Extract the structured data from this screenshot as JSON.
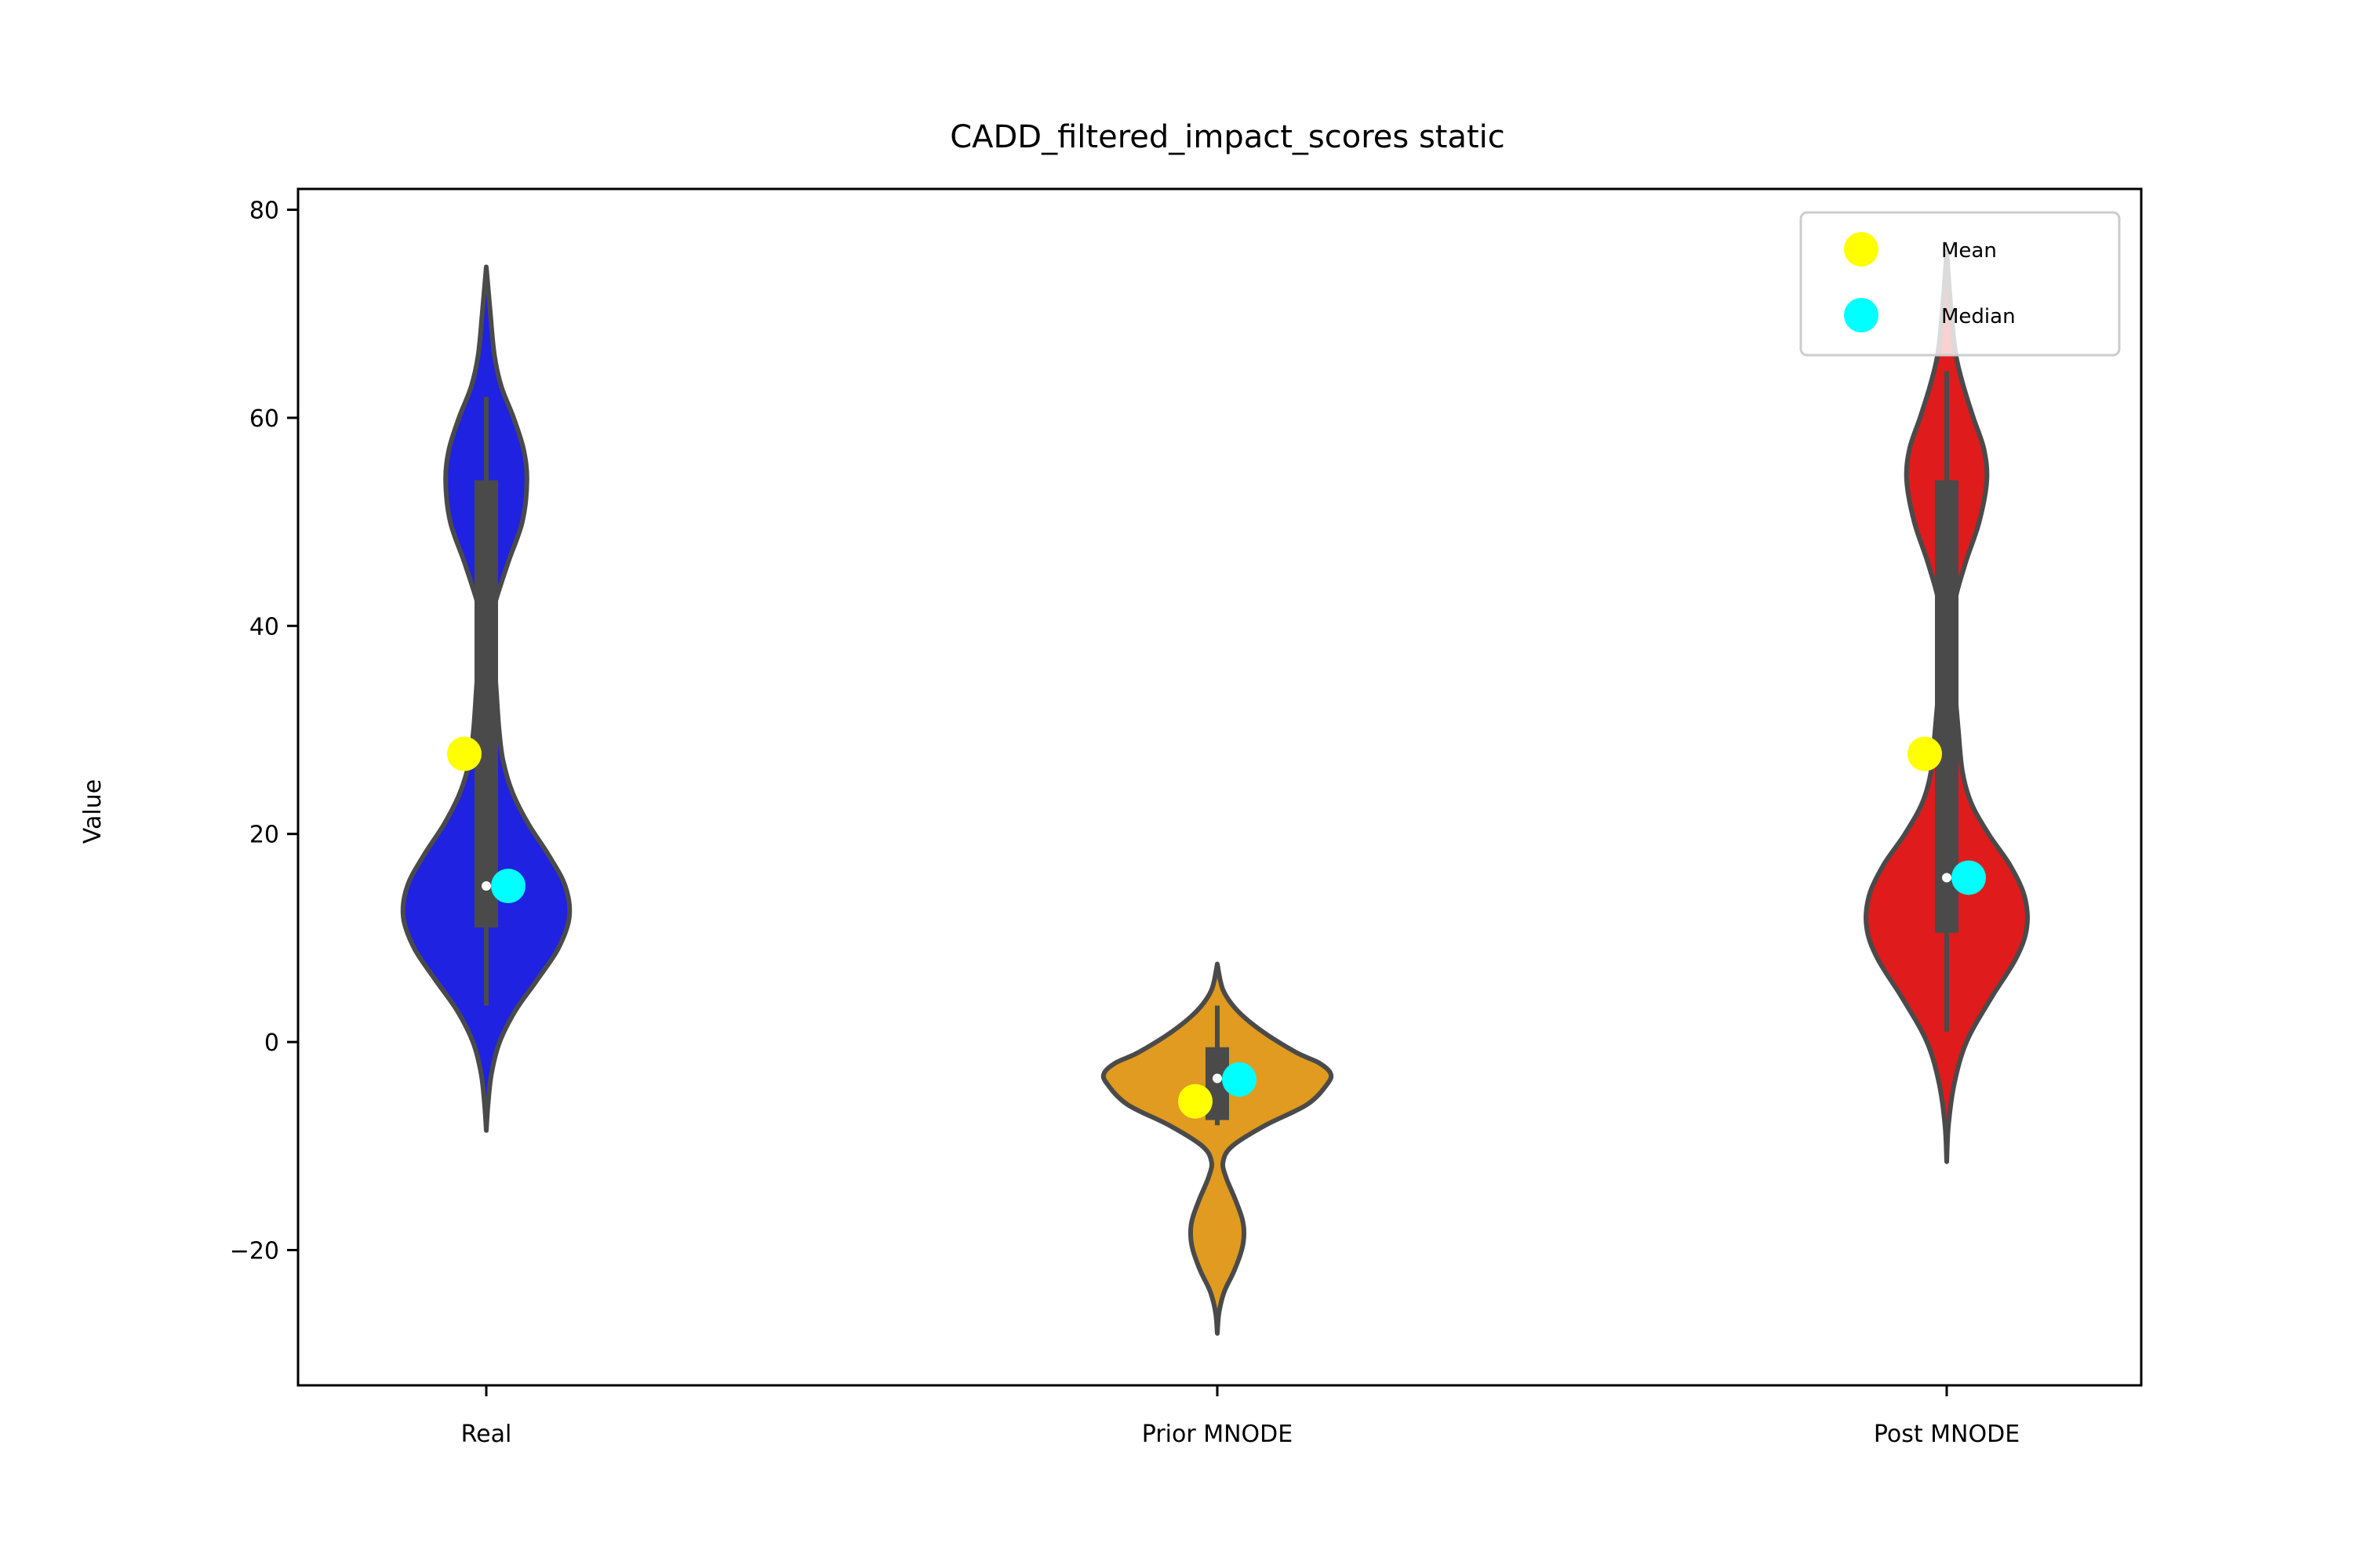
{
  "chart_data": {
    "type": "violin",
    "title": "CADD_filtered_impact_scores static",
    "xlabel": "",
    "ylabel": "Value",
    "ylim": [
      -33,
      82
    ],
    "yticks": [
      -20,
      0,
      20,
      40,
      60,
      80
    ],
    "ytick_labels": [
      "−20",
      "0",
      "20",
      "40",
      "60",
      "80"
    ],
    "categories": [
      "Real",
      "Prior MNODE",
      "Post MNODE"
    ],
    "grid": false,
    "legend": {
      "placement": "top-right",
      "entries": [
        {
          "label": "Mean",
          "color": "#ffff00"
        },
        {
          "label": "Median",
          "color": "#00ffff"
        }
      ]
    },
    "violins": [
      {
        "category": "Real",
        "color": "#1f22e0",
        "extent": [
          -8.5,
          74.5
        ],
        "density": [
          [
            -8.5,
            0.0
          ],
          [
            -6.0,
            0.3
          ],
          [
            -3.0,
            0.9
          ],
          [
            0.0,
            2.3
          ],
          [
            3.0,
            5.0
          ],
          [
            6.0,
            8.8
          ],
          [
            9.0,
            12.4
          ],
          [
            12.0,
            14.3
          ],
          [
            15.0,
            13.6
          ],
          [
            18.0,
            10.7
          ],
          [
            21.0,
            7.2
          ],
          [
            24.0,
            4.5
          ],
          [
            27.0,
            2.9
          ],
          [
            30.0,
            2.2
          ],
          [
            34.0,
            1.7
          ],
          [
            38.0,
            1.2
          ],
          [
            40.0,
            0.75
          ],
          [
            42.0,
            1.4
          ],
          [
            46.0,
            3.7
          ],
          [
            50.0,
            6.2
          ],
          [
            54.0,
            7.0
          ],
          [
            57.0,
            6.4
          ],
          [
            60.0,
            4.7
          ],
          [
            63.0,
            2.6
          ],
          [
            66.0,
            1.4
          ],
          [
            70.0,
            0.7
          ],
          [
            74.5,
            0.0
          ]
        ],
        "box": {
          "whisker_low": 3.5,
          "q1": 11.0,
          "median": 15.0,
          "q3": 54.0,
          "whisker_high": 62.0
        },
        "mean_point": 27.7,
        "median_point": 15.0
      },
      {
        "category": "Prior MNODE",
        "color": "#e09b20",
        "extent": [
          -28,
          7.5
        ],
        "density": [
          [
            -28.0,
            0.0
          ],
          [
            -26.0,
            0.3
          ],
          [
            -24.0,
            1.2
          ],
          [
            -22.0,
            2.9
          ],
          [
            -20.0,
            4.2
          ],
          [
            -18.5,
            4.6
          ],
          [
            -17.0,
            4.3
          ],
          [
            -15.0,
            3.0
          ],
          [
            -13.0,
            1.5
          ],
          [
            -11.5,
            1.0
          ],
          [
            -10.0,
            2.6
          ],
          [
            -8.0,
            8.3
          ],
          [
            -6.0,
            15.5
          ],
          [
            -4.0,
            19.0
          ],
          [
            -3.0,
            19.5
          ],
          [
            -2.0,
            17.5
          ],
          [
            -1.0,
            13.6
          ],
          [
            1.0,
            7.8
          ],
          [
            3.0,
            3.5
          ],
          [
            5.0,
            1.0
          ],
          [
            7.5,
            0.0
          ]
        ],
        "box": {
          "whisker_low": -8.0,
          "q1": -7.5,
          "median": -3.5,
          "q3": -0.5,
          "whisker_high": 3.5
        },
        "mean_point": -5.7,
        "median_point": -3.6
      },
      {
        "category": "Post MNODE",
        "color": "#e01b1b",
        "extent": [
          -11.5,
          76
        ],
        "density": [
          [
            -11.5,
            0.0
          ],
          [
            -8.0,
            0.3
          ],
          [
            -4.0,
            1.3
          ],
          [
            0.0,
            3.4
          ],
          [
            4.0,
            7.4
          ],
          [
            8.0,
            11.9
          ],
          [
            11.0,
            13.8
          ],
          [
            14.0,
            13.4
          ],
          [
            17.0,
            10.9
          ],
          [
            20.0,
            7.2
          ],
          [
            23.0,
            4.2
          ],
          [
            26.0,
            2.7
          ],
          [
            30.0,
            2.0
          ],
          [
            34.0,
            1.4
          ],
          [
            38.0,
            1.0
          ],
          [
            42.0,
            1.3
          ],
          [
            46.0,
            3.2
          ],
          [
            50.0,
            5.6
          ],
          [
            54.0,
            6.9
          ],
          [
            57.0,
            6.4
          ],
          [
            60.0,
            4.6
          ],
          [
            63.0,
            2.9
          ],
          [
            66.0,
            1.6
          ],
          [
            70.0,
            0.8
          ],
          [
            76.0,
            0.0
          ]
        ],
        "box": {
          "whisker_low": 1.0,
          "q1": 10.5,
          "median": 15.8,
          "q3": 54.0,
          "whisker_high": 64.5
        },
        "mean_point": 27.7,
        "median_point": 15.8
      }
    ],
    "mean_color": "#ffff00",
    "median_color": "#00ffff",
    "outline_color": "#4a4a4a"
  }
}
